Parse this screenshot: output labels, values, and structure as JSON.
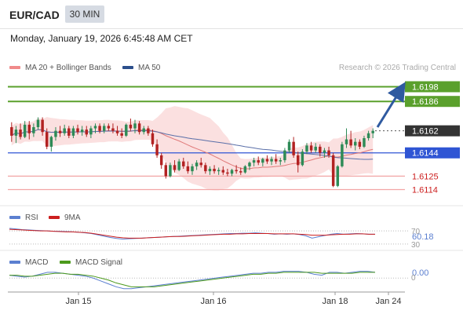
{
  "header": {
    "symbol": "EUR/CAD",
    "timeframe": "30 MIN",
    "datetime": "Monday, January 19, 2026 6:45:48 AM CET"
  },
  "legend": {
    "ma20": "MA 20 + Bollinger Bands",
    "ma50": "MA 50",
    "credit": "Research © 2026 Trading Central"
  },
  "colors": {
    "up": "#2e8b57",
    "down": "#b22222",
    "bands": "#f7c6c6",
    "ma20": "#e07a7a",
    "ma50": "#5a6fa8",
    "resistance": "#5aa02c",
    "support_blue": "#2f55d4",
    "support_red": "#f2a6a6",
    "rsi": "#5b7fd0",
    "rsi_ma": "#cc1f1f",
    "macd": "#5b7fd0",
    "macd_signal": "#4c9a1c",
    "arrow": "#2f5aa0"
  },
  "chart_data": [
    {
      "type": "candlestick",
      "panel": "price",
      "x": [
        "Jan 15",
        "Jan 16",
        "Jan 18",
        "Jan 24"
      ],
      "levels": [
        {
          "value": "1.6198",
          "kind": "resistance"
        },
        {
          "value": "1.6186",
          "kind": "resistance"
        },
        {
          "value": "1.6162",
          "kind": "current"
        },
        {
          "value": "1.6144",
          "kind": "pivot"
        },
        {
          "value": "1.6125",
          "kind": "support"
        },
        {
          "value": "1.6114",
          "kind": "support"
        }
      ],
      "ylim": [
        1.6106,
        1.6206
      ],
      "candles": [
        [
          1.6165,
          1.6169,
          1.6153,
          1.6158
        ],
        [
          1.6158,
          1.6166,
          1.6152,
          1.6163
        ],
        [
          1.6163,
          1.6168,
          1.6155,
          1.6157
        ],
        [
          1.6157,
          1.617,
          1.6156,
          1.6167
        ],
        [
          1.6167,
          1.617,
          1.6155,
          1.616
        ],
        [
          1.616,
          1.6168,
          1.6157,
          1.6165
        ],
        [
          1.6165,
          1.6173,
          1.6163,
          1.6171
        ],
        [
          1.6171,
          1.6173,
          1.6158,
          1.6161
        ],
        [
          1.6161,
          1.6164,
          1.6147,
          1.6149
        ],
        [
          1.6149,
          1.6158,
          1.6145,
          1.6157
        ],
        [
          1.6157,
          1.6165,
          1.6154,
          1.6162
        ],
        [
          1.6162,
          1.6166,
          1.6157,
          1.616
        ],
        [
          1.616,
          1.6167,
          1.6158,
          1.6164
        ],
        [
          1.6164,
          1.6166,
          1.6156,
          1.6158
        ],
        [
          1.6158,
          1.6166,
          1.6156,
          1.6164
        ],
        [
          1.6164,
          1.6167,
          1.6159,
          1.6161
        ],
        [
          1.6161,
          1.6166,
          1.6158,
          1.6163
        ],
        [
          1.6163,
          1.6166,
          1.6157,
          1.6159
        ],
        [
          1.6159,
          1.6166,
          1.6156,
          1.6164
        ],
        [
          1.6164,
          1.6168,
          1.616,
          1.6166
        ],
        [
          1.6166,
          1.6168,
          1.616,
          1.6162
        ],
        [
          1.6162,
          1.6168,
          1.616,
          1.6166
        ],
        [
          1.6166,
          1.6168,
          1.6162,
          1.6164
        ],
        [
          1.6164,
          1.6168,
          1.616,
          1.6162
        ],
        [
          1.6162,
          1.6166,
          1.6158,
          1.616
        ],
        [
          1.616,
          1.6164,
          1.6156,
          1.6158
        ],
        [
          1.6158,
          1.6168,
          1.6157,
          1.6167
        ],
        [
          1.6167,
          1.6172,
          1.6162,
          1.6164
        ],
        [
          1.6164,
          1.6171,
          1.616,
          1.6168
        ],
        [
          1.6168,
          1.617,
          1.6159,
          1.6161
        ],
        [
          1.6161,
          1.6166,
          1.6159,
          1.6164
        ],
        [
          1.6164,
          1.6166,
          1.6158,
          1.616
        ],
        [
          1.616,
          1.6163,
          1.6149,
          1.6151
        ],
        [
          1.6151,
          1.6155,
          1.614,
          1.6142
        ],
        [
          1.6142,
          1.6144,
          1.6131,
          1.6134
        ],
        [
          1.6134,
          1.6136,
          1.6123,
          1.6125
        ],
        [
          1.6125,
          1.6136,
          1.6124,
          1.6134
        ],
        [
          1.6134,
          1.6138,
          1.6128,
          1.613
        ],
        [
          1.613,
          1.6139,
          1.6129,
          1.6137
        ],
        [
          1.6137,
          1.614,
          1.6131,
          1.6133
        ],
        [
          1.6133,
          1.6137,
          1.6127,
          1.6129
        ],
        [
          1.6129,
          1.6135,
          1.6126,
          1.6133
        ],
        [
          1.6133,
          1.6138,
          1.613,
          1.6136
        ],
        [
          1.6136,
          1.614,
          1.6132,
          1.6134
        ],
        [
          1.6134,
          1.6136,
          1.6127,
          1.6129
        ],
        [
          1.6129,
          1.6133,
          1.6126,
          1.6131
        ],
        [
          1.6131,
          1.6134,
          1.6127,
          1.6129
        ],
        [
          1.6129,
          1.6132,
          1.6126,
          1.613
        ],
        [
          1.613,
          1.6133,
          1.6126,
          1.6128
        ],
        [
          1.6128,
          1.6131,
          1.6125,
          1.6127
        ],
        [
          1.6127,
          1.6131,
          1.6125,
          1.613
        ],
        [
          1.613,
          1.6134,
          1.6127,
          1.6129
        ],
        [
          1.6129,
          1.6132,
          1.6126,
          1.6128
        ],
        [
          1.6128,
          1.6134,
          1.6127,
          1.6133
        ],
        [
          1.6133,
          1.6137,
          1.613,
          1.6136
        ],
        [
          1.6136,
          1.614,
          1.6133,
          1.6138
        ],
        [
          1.6138,
          1.6141,
          1.6134,
          1.6136
        ],
        [
          1.6136,
          1.614,
          1.6133,
          1.6139
        ],
        [
          1.6139,
          1.6142,
          1.6135,
          1.6137
        ],
        [
          1.6137,
          1.6141,
          1.6134,
          1.6139
        ],
        [
          1.6139,
          1.6143,
          1.6135,
          1.6137
        ],
        [
          1.6137,
          1.614,
          1.6134,
          1.6138
        ],
        [
          1.6138,
          1.6148,
          1.6136,
          1.6146
        ],
        [
          1.6146,
          1.6155,
          1.6144,
          1.6153
        ],
        [
          1.6153,
          1.6157,
          1.614,
          1.6142
        ],
        [
          1.6142,
          1.6145,
          1.6128,
          1.6134
        ],
        [
          1.6134,
          1.6147,
          1.6133,
          1.6145
        ],
        [
          1.6145,
          1.6152,
          1.6143,
          1.615
        ],
        [
          1.615,
          1.6153,
          1.6144,
          1.6146
        ],
        [
          1.6146,
          1.6152,
          1.6144,
          1.6149
        ],
        [
          1.6149,
          1.6151,
          1.6141,
          1.6144
        ],
        [
          1.6144,
          1.6148,
          1.614,
          1.6146
        ],
        [
          1.6146,
          1.6149,
          1.614,
          1.6142
        ],
        [
          1.6142,
          1.6144,
          1.6116,
          1.6117
        ],
        [
          1.6117,
          1.6134,
          1.6116,
          1.6133
        ],
        [
          1.6133,
          1.6153,
          1.6132,
          1.6151
        ],
        [
          1.6151,
          1.6164,
          1.6148,
          1.6155
        ],
        [
          1.6155,
          1.6162,
          1.6148,
          1.615
        ],
        [
          1.615,
          1.6156,
          1.6146,
          1.6153
        ],
        [
          1.6153,
          1.6155,
          1.6147,
          1.6149
        ],
        [
          1.6149,
          1.6158,
          1.6148,
          1.6156
        ],
        [
          1.6156,
          1.6162,
          1.6154,
          1.616
        ],
        [
          1.616,
          1.6164,
          1.6156,
          1.6162
        ]
      ],
      "annotation": "arrow-up-to-1.6198"
    },
    {
      "type": "line",
      "panel": "rsi",
      "legend": [
        "RSI",
        "9MA"
      ],
      "ylim": [
        20,
        80
      ],
      "yticks": [
        "70",
        "30"
      ],
      "current_label": "60.18",
      "series": [
        {
          "name": "RSI",
          "values": [
            78,
            76,
            74,
            73,
            72,
            71,
            70,
            69,
            69,
            68,
            67,
            66,
            64,
            62,
            58,
            54,
            50,
            47,
            45,
            46,
            47,
            48,
            49,
            50,
            51,
            52,
            53,
            54,
            55,
            56,
            57,
            58,
            59,
            60,
            61,
            62,
            62,
            63,
            63,
            64,
            63,
            62,
            60,
            61,
            60,
            61,
            59,
            55,
            48,
            52,
            56,
            60,
            62,
            60,
            61,
            62,
            61,
            60,
            60
          ]
        },
        {
          "name": "9MA",
          "values": [
            75,
            74,
            73,
            72,
            71,
            70,
            70,
            69,
            68,
            67,
            67,
            66,
            65,
            63,
            60,
            57,
            54,
            51,
            49,
            48,
            48,
            48,
            49,
            50,
            51,
            52,
            53,
            53,
            54,
            55,
            56,
            57,
            58,
            59,
            60,
            60,
            61,
            61,
            62,
            62,
            62,
            62,
            61,
            61,
            61,
            61,
            60,
            59,
            57,
            57,
            57,
            58,
            59,
            60,
            60,
            61,
            61,
            60,
            60
          ]
        }
      ]
    },
    {
      "type": "line",
      "panel": "macd",
      "legend": [
        "MACD",
        "MACD Signal"
      ],
      "ylim": [
        -0.0012,
        0.001
      ],
      "current_label": "0.00",
      "series": [
        {
          "name": "MACD",
          "values": [
            0.0003,
            0.0002,
            0.0001,
            0.0002,
            0.0004,
            0.0006,
            0.0006,
            0.0005,
            0.0004,
            0.0003,
            0.0002,
            0.0,
            -0.0003,
            -0.0006,
            -0.0009,
            -0.0011,
            -0.0011,
            -0.001,
            -0.0009,
            -0.0008,
            -0.0007,
            -0.0006,
            -0.0005,
            -0.0004,
            -0.0003,
            -0.0002,
            -0.0001,
            0.0,
            0.0001,
            0.0002,
            0.0003,
            0.0004,
            0.0005,
            0.0005,
            0.0006,
            0.0006,
            0.0007,
            0.0007,
            0.0007,
            0.0006,
            0.0004,
            0.0003,
            0.0006,
            0.0006,
            0.0005,
            0.0006,
            0.0007,
            0.0007,
            0.0006
          ]
        },
        {
          "name": "MACD Signal",
          "values": [
            0.0003,
            0.0003,
            0.0002,
            0.0002,
            0.0003,
            0.0004,
            0.0005,
            0.0005,
            0.0004,
            0.0004,
            0.0003,
            0.0002,
            0.0,
            -0.0002,
            -0.0005,
            -0.0007,
            -0.0009,
            -0.0009,
            -0.0009,
            -0.0009,
            -0.0008,
            -0.0007,
            -0.0006,
            -0.0005,
            -0.0004,
            -0.0003,
            -0.0002,
            -0.0001,
            0.0,
            0.0001,
            0.0002,
            0.0003,
            0.0004,
            0.0004,
            0.0005,
            0.0005,
            0.0006,
            0.0006,
            0.0006,
            0.0006,
            0.0006,
            0.0005,
            0.0005,
            0.0005,
            0.0005,
            0.0005,
            0.0006,
            0.0006,
            0.0006
          ]
        }
      ]
    }
  ]
}
